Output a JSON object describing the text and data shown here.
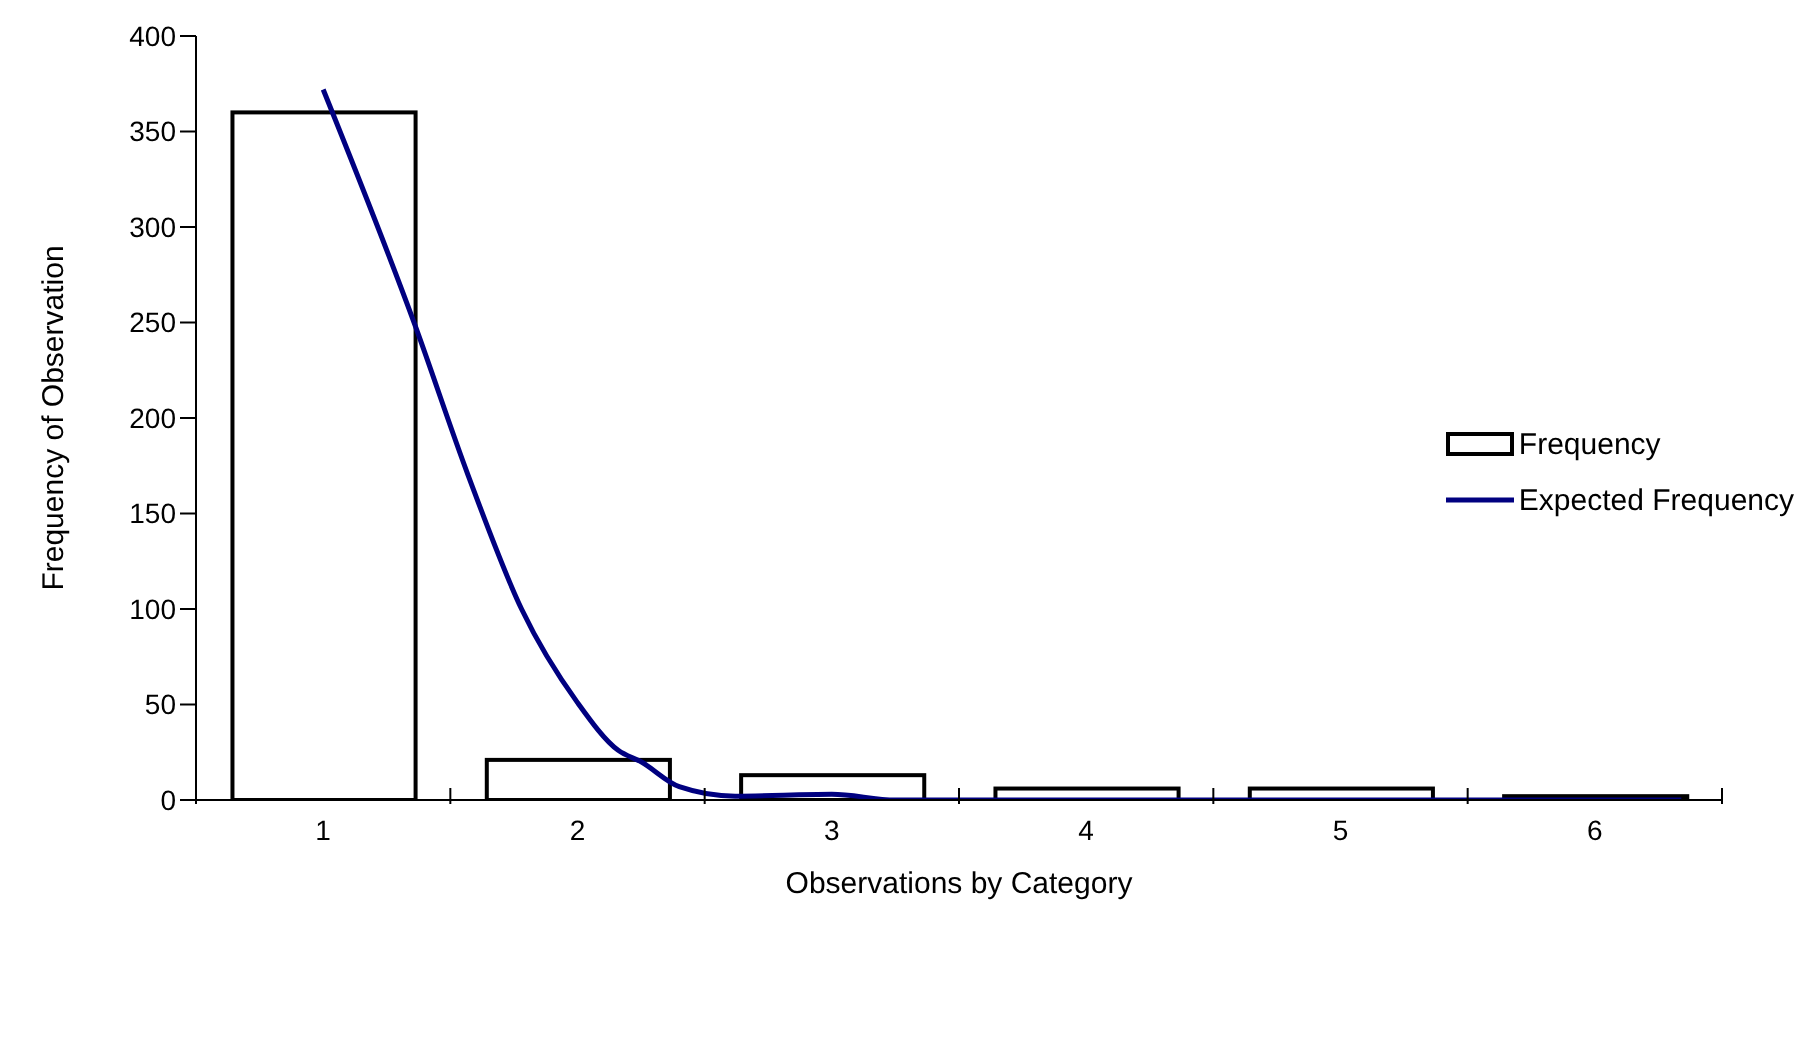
{
  "chart_data": {
    "type": "bar",
    "xlabel": "Observations by Category",
    "ylabel": "Frequency of Observation",
    "x": [
      1,
      2,
      3,
      4,
      5,
      6
    ],
    "xlim": [
      0.5,
      6.5
    ],
    "xticks": [
      {
        "value": 0.5,
        "label": null
      },
      1,
      {
        "value": 1.5,
        "label": null
      },
      2,
      {
        "value": 2.5,
        "label": null
      },
      3,
      {
        "value": 3.5,
        "label": null
      },
      4,
      {
        "value": 4.5,
        "label": null
      },
      5,
      {
        "value": 5.5,
        "label": null
      },
      6,
      {
        "value": 6.5,
        "label": null
      }
    ],
    "ylim": [
      0,
      400
    ],
    "yticks": [
      0,
      50,
      100,
      150,
      200,
      250,
      300,
      350,
      400
    ],
    "grid": false,
    "legend": "right",
    "marker": "none",
    "series": [
      {
        "name": "Frequency",
        "color": "#000000",
        "values": [
          360,
          21,
          13,
          6,
          6,
          2
        ]
      },
      {
        "name": "Expected Frequency",
        "type": "line",
        "color": "#000080",
        "x": [
          1,
          1.36,
          1.57,
          1.78,
          2,
          2.16,
          2.25,
          2.4,
          2.62,
          3,
          3.25,
          4,
          5,
          6,
          6.34
        ],
        "values": [
          372,
          249,
          170,
          100,
          51,
          26,
          20,
          7,
          2,
          3,
          0,
          0,
          0,
          0,
          0
        ]
      }
    ]
  }
}
